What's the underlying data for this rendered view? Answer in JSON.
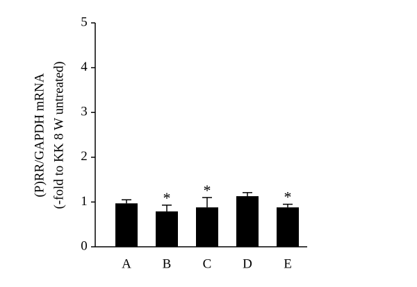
{
  "chart_data": {
    "type": "bar",
    "y_label": [
      "(P)RR/GAPDH mRNA",
      "(-fold to KK 8 W untreated)"
    ],
    "categories": [
      "A",
      "B",
      "C",
      "D",
      "E"
    ],
    "values": [
      0.97,
      0.79,
      0.88,
      1.13,
      0.88
    ],
    "errors": [
      0.08,
      0.14,
      0.22,
      0.08,
      0.07
    ],
    "markers": [
      null,
      "*",
      "*",
      null,
      "*"
    ],
    "color": "#000000",
    "ylim": [
      0,
      5
    ],
    "yticks": [
      0,
      1,
      2,
      3,
      4,
      5
    ],
    "grid": false
  }
}
